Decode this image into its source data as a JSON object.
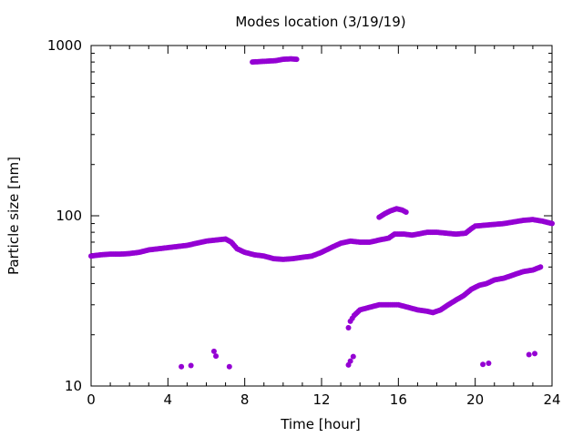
{
  "chart_data": {
    "type": "scatter",
    "title": "Modes location (3/19/19)",
    "xlabel": "Time [hour]",
    "ylabel": "Particle size [nm]",
    "xlim": [
      0,
      24
    ],
    "ylim": [
      10,
      1000
    ],
    "yscale": "log",
    "xticks": [
      0,
      4,
      8,
      12,
      16,
      20,
      24
    ],
    "xtick_labels": [
      "0",
      "4",
      "8",
      "12",
      "16",
      "20",
      "24"
    ],
    "yticks": [
      10,
      100,
      1000
    ],
    "ytick_labels": [
      "10",
      "100",
      "1000"
    ],
    "grid": false,
    "legend": "none",
    "marker_color": "#9400D3",
    "series": [
      {
        "points": [
          [
            0.0,
            58
          ],
          [
            0.5,
            59
          ],
          [
            1.0,
            59.5
          ],
          [
            1.5,
            59.5
          ],
          [
            2.0,
            60
          ],
          [
            2.5,
            61
          ],
          [
            3.0,
            63
          ],
          [
            3.5,
            64
          ],
          [
            4.0,
            65
          ],
          [
            4.5,
            66
          ],
          [
            5.0,
            67
          ],
          [
            5.5,
            69
          ],
          [
            6.0,
            71
          ],
          [
            6.5,
            72
          ],
          [
            7.0,
            73
          ],
          [
            7.3,
            70
          ],
          [
            7.6,
            64
          ],
          [
            8.0,
            61
          ],
          [
            8.5,
            59
          ],
          [
            9.0,
            58
          ],
          [
            9.5,
            56
          ],
          [
            10.0,
            55.5
          ],
          [
            10.5,
            56
          ],
          [
            11.0,
            57
          ],
          [
            11.5,
            58
          ],
          [
            12.0,
            61
          ],
          [
            12.5,
            65
          ],
          [
            13.0,
            69
          ],
          [
            13.5,
            71
          ],
          [
            14.0,
            70
          ],
          [
            14.5,
            70
          ],
          [
            15.0,
            72
          ],
          [
            15.5,
            74
          ],
          [
            15.8,
            78
          ],
          [
            16.3,
            78
          ],
          [
            16.7,
            77
          ],
          [
            17.0,
            78
          ],
          [
            17.5,
            80
          ],
          [
            18.0,
            80
          ],
          [
            18.5,
            79
          ],
          [
            19.0,
            78
          ],
          [
            19.5,
            79
          ],
          [
            19.8,
            84
          ],
          [
            20.0,
            87
          ],
          [
            20.5,
            88
          ],
          [
            21.0,
            89
          ],
          [
            21.5,
            90
          ],
          [
            22.0,
            92
          ],
          [
            22.5,
            94
          ],
          [
            23.0,
            95
          ],
          [
            23.5,
            93
          ],
          [
            24.0,
            90
          ]
        ]
      },
      {
        "points": [
          [
            8.4,
            800
          ],
          [
            8.8,
            805
          ],
          [
            9.2,
            810
          ],
          [
            9.6,
            815
          ],
          [
            10.0,
            830
          ],
          [
            10.4,
            835
          ],
          [
            10.7,
            830
          ]
        ]
      },
      {
        "points": [
          [
            15.0,
            98
          ],
          [
            15.3,
            103
          ],
          [
            15.6,
            107
          ],
          [
            15.9,
            110
          ],
          [
            16.2,
            108
          ],
          [
            16.4,
            105
          ]
        ]
      },
      {
        "points": [
          [
            13.4,
            22
          ],
          [
            13.5,
            24
          ],
          [
            13.7,
            26
          ],
          [
            14.0,
            28
          ],
          [
            14.5,
            29
          ],
          [
            15.0,
            30
          ],
          [
            15.5,
            30
          ],
          [
            16.0,
            30
          ],
          [
            16.5,
            29
          ],
          [
            17.0,
            28
          ],
          [
            17.5,
            27.5
          ],
          [
            17.8,
            27
          ],
          [
            18.2,
            28
          ],
          [
            18.6,
            30
          ],
          [
            19.0,
            32
          ],
          [
            19.4,
            34
          ],
          [
            19.8,
            37
          ],
          [
            20.2,
            39
          ],
          [
            20.6,
            40
          ],
          [
            21.0,
            42
          ],
          [
            21.5,
            43
          ],
          [
            22.0,
            45
          ],
          [
            22.5,
            47
          ],
          [
            23.0,
            48
          ],
          [
            23.4,
            50
          ]
        ]
      },
      {
        "points": [
          [
            4.7,
            13
          ],
          [
            5.2,
            13.2
          ],
          [
            6.4,
            16
          ],
          [
            6.5,
            15
          ],
          [
            7.2,
            13
          ],
          [
            13.4,
            13.3
          ],
          [
            13.5,
            14
          ],
          [
            13.65,
            14.9
          ],
          [
            20.4,
            13.4
          ],
          [
            20.7,
            13.6
          ],
          [
            22.8,
            15.3
          ],
          [
            23.1,
            15.5
          ]
        ]
      }
    ]
  }
}
